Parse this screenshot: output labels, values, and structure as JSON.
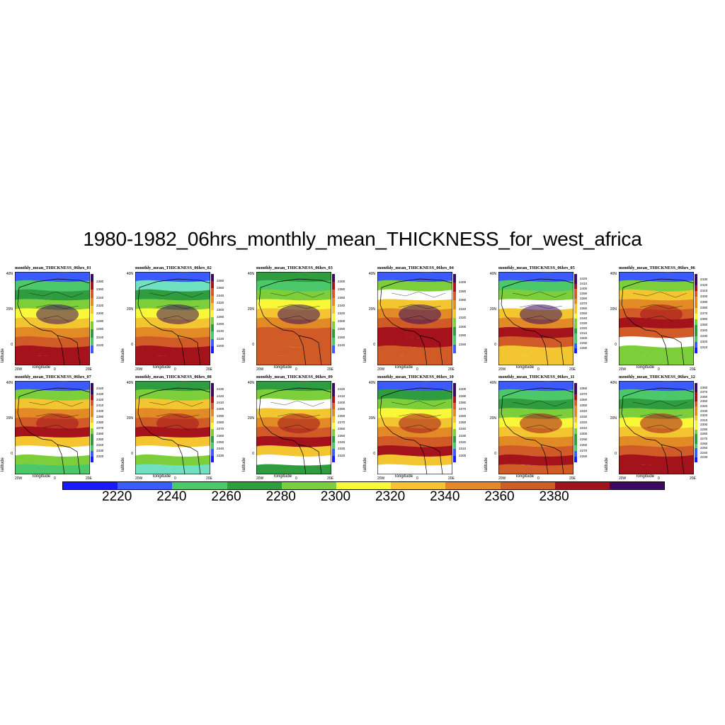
{
  "title": "1980-1982_06hrs_monthly_mean_THICKNESS_for_west_africa",
  "axis": {
    "xlabel": "longitude",
    "ylabel": "latitude",
    "lat_ticks": [
      "40N",
      "20N",
      "0"
    ],
    "lon_ticks": [
      "20W",
      "0",
      "20E"
    ]
  },
  "colors": {
    "levels": [
      "#1a1aff",
      "#3b5bff",
      "#4cc76a",
      "#2f9d3f",
      "#7ccf3a",
      "#f8f838",
      "#f2c531",
      "#e28a26",
      "#d15b26",
      "#a4121c",
      "#3b0a5e"
    ],
    "land_boundary": "#000000"
  },
  "panels": [
    {
      "title": "monthly_mean_THICKNESS_06hrs_01",
      "ticks": [
        "2380",
        "2360",
        "2340",
        "2320",
        "2300",
        "2280",
        "2260",
        "2240",
        "2220"
      ],
      "bands": [
        "#3b5bff",
        "#4cc76a",
        "#2f9d3f",
        "#7ccf3a",
        "#f8f838",
        "#f2c531",
        "#e28a26",
        "#d15b26",
        "#a4121c",
        "#a4121c"
      ]
    },
    {
      "title": "monthly_mean_THICKNESS_06hrs_02",
      "ticks": [
        "2380",
        "2360",
        "2340",
        "2320",
        "2300",
        "2280",
        "2260",
        "2240",
        "2220",
        "2200"
      ],
      "bands": [
        "#3b5bff",
        "#6fe0c0",
        "#2f9d3f",
        "#7ccf3a",
        "#f8f838",
        "#f2c531",
        "#e28a26",
        "#d15b26",
        "#a4121c",
        "#a4121c"
      ]
    },
    {
      "title": "monthly_mean_THICKNESS_06hrs_03",
      "ticks": [
        "2400",
        "2380",
        "2360",
        "2340",
        "2320",
        "2300",
        "2280",
        "2260",
        "2240"
      ],
      "bands": [
        "#2f9d3f",
        "#4cc76a",
        "#7ccf3a",
        "#f8f838",
        "#f2c531",
        "#e28a26",
        "#d15b26",
        "#d15b26",
        "#d15b26",
        "#d15b26"
      ]
    },
    {
      "title": "monthly_mean_THICKNESS_06hrs_04",
      "ticks": [
        "2400",
        "2380",
        "2360",
        "2340",
        "2320",
        "2300",
        "2280",
        "2260"
      ],
      "bands": [
        "#3b5bff",
        "#7ccf3a",
        "#ffffff",
        "#f2c531",
        "#e28a26",
        "#d15b26",
        "#a4121c",
        "#a4121c",
        "#d15b26",
        "#d15b26"
      ]
    },
    {
      "title": "monthly_mean_THICKNESS_06hrs_05",
      "ticks": [
        "2420",
        "2410",
        "2400",
        "2390",
        "2380",
        "2370",
        "2360",
        "2350",
        "2340",
        "2330",
        "2320",
        "2310",
        "2300",
        "2290",
        "2280"
      ],
      "bands": [
        "#3b5bff",
        "#4cc76a",
        "#7ccf3a",
        "#ffffff",
        "#f2c531",
        "#e28a26",
        "#a4121c",
        "#d15b26",
        "#f2c531",
        "#f2c531"
      ]
    },
    {
      "title": "monthly_mean_THICKNESS_06hrs_06",
      "ticks": [
        "2430",
        "2420",
        "2410",
        "2400",
        "2390",
        "2380",
        "2370",
        "2360",
        "2350",
        "2340",
        "2330",
        "2320",
        "2310"
      ],
      "bands": [
        "#3b5bff",
        "#7ccf3a",
        "#f2c531",
        "#e28a26",
        "#d15b26",
        "#a4121c",
        "#d15b26",
        "#ffffff",
        "#7ccf3a",
        "#7ccf3a"
      ]
    },
    {
      "title": "monthly_mean_THICKNESS_06hrs_07",
      "ticks": [
        "2440",
        "2430",
        "2420",
        "2410",
        "2400",
        "2390",
        "2380",
        "2370",
        "2360",
        "2350",
        "2340",
        "2330",
        "2320"
      ],
      "bands": [
        "#3b5bff",
        "#7ccf3a",
        "#f2c531",
        "#e28a26",
        "#d15b26",
        "#a4121c",
        "#f2c531",
        "#ffffff",
        "#7ccf3a",
        "#4cc76a"
      ]
    },
    {
      "title": "monthly_mean_THICKNESS_06hrs_08",
      "ticks": [
        "2430",
        "2420",
        "2410",
        "2400",
        "2390",
        "2380",
        "2370",
        "2360",
        "2350",
        "2340",
        "2330"
      ],
      "bands": [
        "#2f9d3f",
        "#7ccf3a",
        "#f2c531",
        "#e28a26",
        "#d15b26",
        "#a4121c",
        "#f2c531",
        "#ffffff",
        "#7ccf3a",
        "#6fe0c0"
      ]
    },
    {
      "title": "monthly_mean_THICKNESS_06hrs_09",
      "ticks": [
        "2420",
        "2410",
        "2400",
        "2390",
        "2380",
        "2370",
        "2360",
        "2350",
        "2340",
        "2330",
        "2320"
      ],
      "bands": [
        "#2f9d3f",
        "#7ccf3a",
        "#ffffff",
        "#f2c531",
        "#e28a26",
        "#d15b26",
        "#a4121c",
        "#f2c531",
        "#ffffff",
        "#2f9d3f"
      ]
    },
    {
      "title": "monthly_mean_THICKNESS_06hrs_10",
      "ticks": [
        "2400",
        "2390",
        "2380",
        "2370",
        "2360",
        "2350",
        "2340",
        "2330",
        "2320",
        "2310",
        "2300"
      ],
      "bands": [
        "#3b5bff",
        "#2f9d3f",
        "#7ccf3a",
        "#f8f838",
        "#f2c531",
        "#e28a26",
        "#d15b26",
        "#a4121c",
        "#f2c531",
        "#ffffff"
      ]
    },
    {
      "title": "monthly_mean_THICKNESS_06hrs_11",
      "ticks": [
        "2380",
        "2370",
        "2360",
        "2350",
        "2340",
        "2330",
        "2320",
        "2310",
        "2300",
        "2290",
        "2280",
        "2270",
        "2260"
      ],
      "bands": [
        "#3b5bff",
        "#4cc76a",
        "#2f9d3f",
        "#7ccf3a",
        "#f8f838",
        "#f2c531",
        "#e28a26",
        "#d15b26",
        "#a4121c",
        "#d15b26"
      ]
    },
    {
      "title": "monthly_mean_THICKNESS_06hrs_12",
      "ticks": [
        "2380",
        "2370",
        "2360",
        "2350",
        "2340",
        "2330",
        "2320",
        "2310",
        "2300",
        "2290",
        "2280",
        "2270",
        "2260",
        "2250",
        "2240",
        "2230"
      ],
      "bands": [
        "#3b5bff",
        "#4cc76a",
        "#2f9d3f",
        "#7ccf3a",
        "#f8f838",
        "#f2c531",
        "#e28a26",
        "#d15b26",
        "#a4121c",
        "#a4121c"
      ]
    }
  ],
  "bottom_colorbar": {
    "colors": [
      "#1a1aff",
      "#3b5bff",
      "#4cc76a",
      "#2f9d3f",
      "#7ccf3a",
      "#f8f838",
      "#f2c531",
      "#e28a26",
      "#d15b26",
      "#a4121c",
      "#3b0a5e"
    ],
    "tick_labels": [
      "2220",
      "2240",
      "2260",
      "2280",
      "2300",
      "2320",
      "2340",
      "2360",
      "2380"
    ]
  }
}
